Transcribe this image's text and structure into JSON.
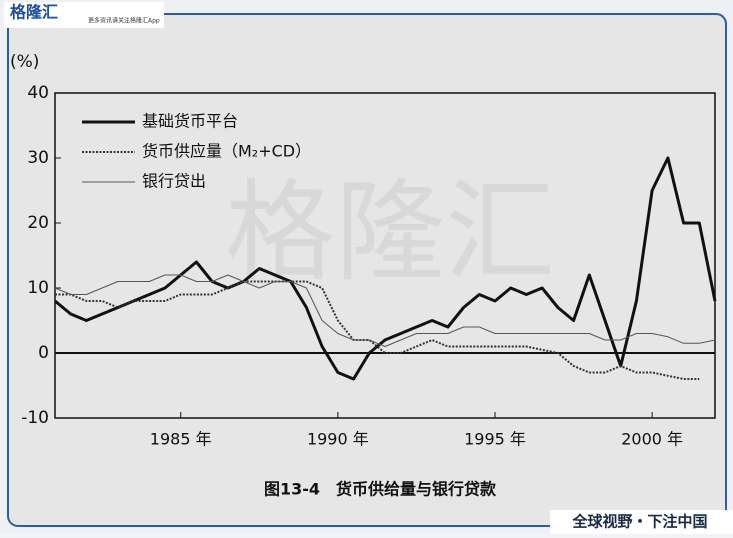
{
  "brand": {
    "logo": "格隆汇",
    "tagline": "更多资讯请关注格隆汇App",
    "slogan": "全球视野・下注中国",
    "watermark": "格隆汇"
  },
  "chart_data": {
    "type": "line",
    "y_label": "(%)",
    "caption": "图13-4　货币供给量与银行贷款",
    "x": [
      1981,
      1981.5,
      1982,
      1982.5,
      1983,
      1983.5,
      1984,
      1984.5,
      1985,
      1985.5,
      1986,
      1986.5,
      1987,
      1987.5,
      1988,
      1988.5,
      1989,
      1989.5,
      1990,
      1990.5,
      1991,
      1991.5,
      1992,
      1992.5,
      1993,
      1993.5,
      1994,
      1994.5,
      1995,
      1995.5,
      1996,
      1996.5,
      1997,
      1997.5,
      1998,
      1998.5,
      1999,
      1999.5,
      2000,
      2000.5,
      2001,
      2001.5,
      2002
    ],
    "series": [
      {
        "name": "基础货币平台",
        "color": "#111111",
        "style": "solid",
        "width": 3,
        "values": [
          8,
          6,
          5,
          6,
          7,
          8,
          9,
          10,
          12,
          14,
          11,
          10,
          11,
          13,
          12,
          11,
          7,
          1,
          -3,
          -4,
          0,
          2,
          3,
          4,
          5,
          4,
          7,
          9,
          8,
          10,
          9,
          10,
          7,
          5,
          12,
          5,
          -2,
          8,
          25,
          30,
          20,
          20,
          8
        ]
      },
      {
        "name": "货币供应量（M₂+CD）",
        "color": "#333333",
        "style": "dotted",
        "width": 2,
        "values": [
          9,
          9,
          8,
          8,
          7,
          8,
          8,
          8,
          9,
          9,
          9,
          10,
          11,
          11,
          11,
          11,
          11,
          10,
          5,
          2,
          2,
          0,
          0,
          1,
          2,
          1,
          1,
          1,
          1,
          1,
          1,
          0.5,
          0,
          -2,
          -3,
          -3,
          -2,
          -3,
          -3,
          -3.5,
          -4,
          -4,
          null
        ]
      },
      {
        "name": "银行贷出",
        "color": "#555555",
        "style": "solid",
        "width": 1,
        "values": [
          10,
          9,
          9,
          10,
          11,
          11,
          11,
          12,
          12,
          11,
          11,
          12,
          11,
          10,
          11,
          11,
          10,
          5,
          3,
          2,
          2,
          1,
          2,
          3,
          3,
          3,
          4,
          4,
          3,
          3,
          3,
          3,
          3,
          3,
          3,
          2,
          2,
          3,
          3,
          2.5,
          1.5,
          1.5,
          2
        ]
      }
    ],
    "xlim": [
      1981,
      2002
    ],
    "xticks": [
      {
        "value": 1985,
        "label": "1985 年"
      },
      {
        "value": 1990,
        "label": "1990 年"
      },
      {
        "value": 1995,
        "label": "1995 年"
      },
      {
        "value": 2000,
        "label": "2000 年"
      }
    ],
    "ylim": [
      -10,
      40
    ],
    "yticks": [
      -10,
      0,
      10,
      20,
      30,
      40
    ]
  }
}
